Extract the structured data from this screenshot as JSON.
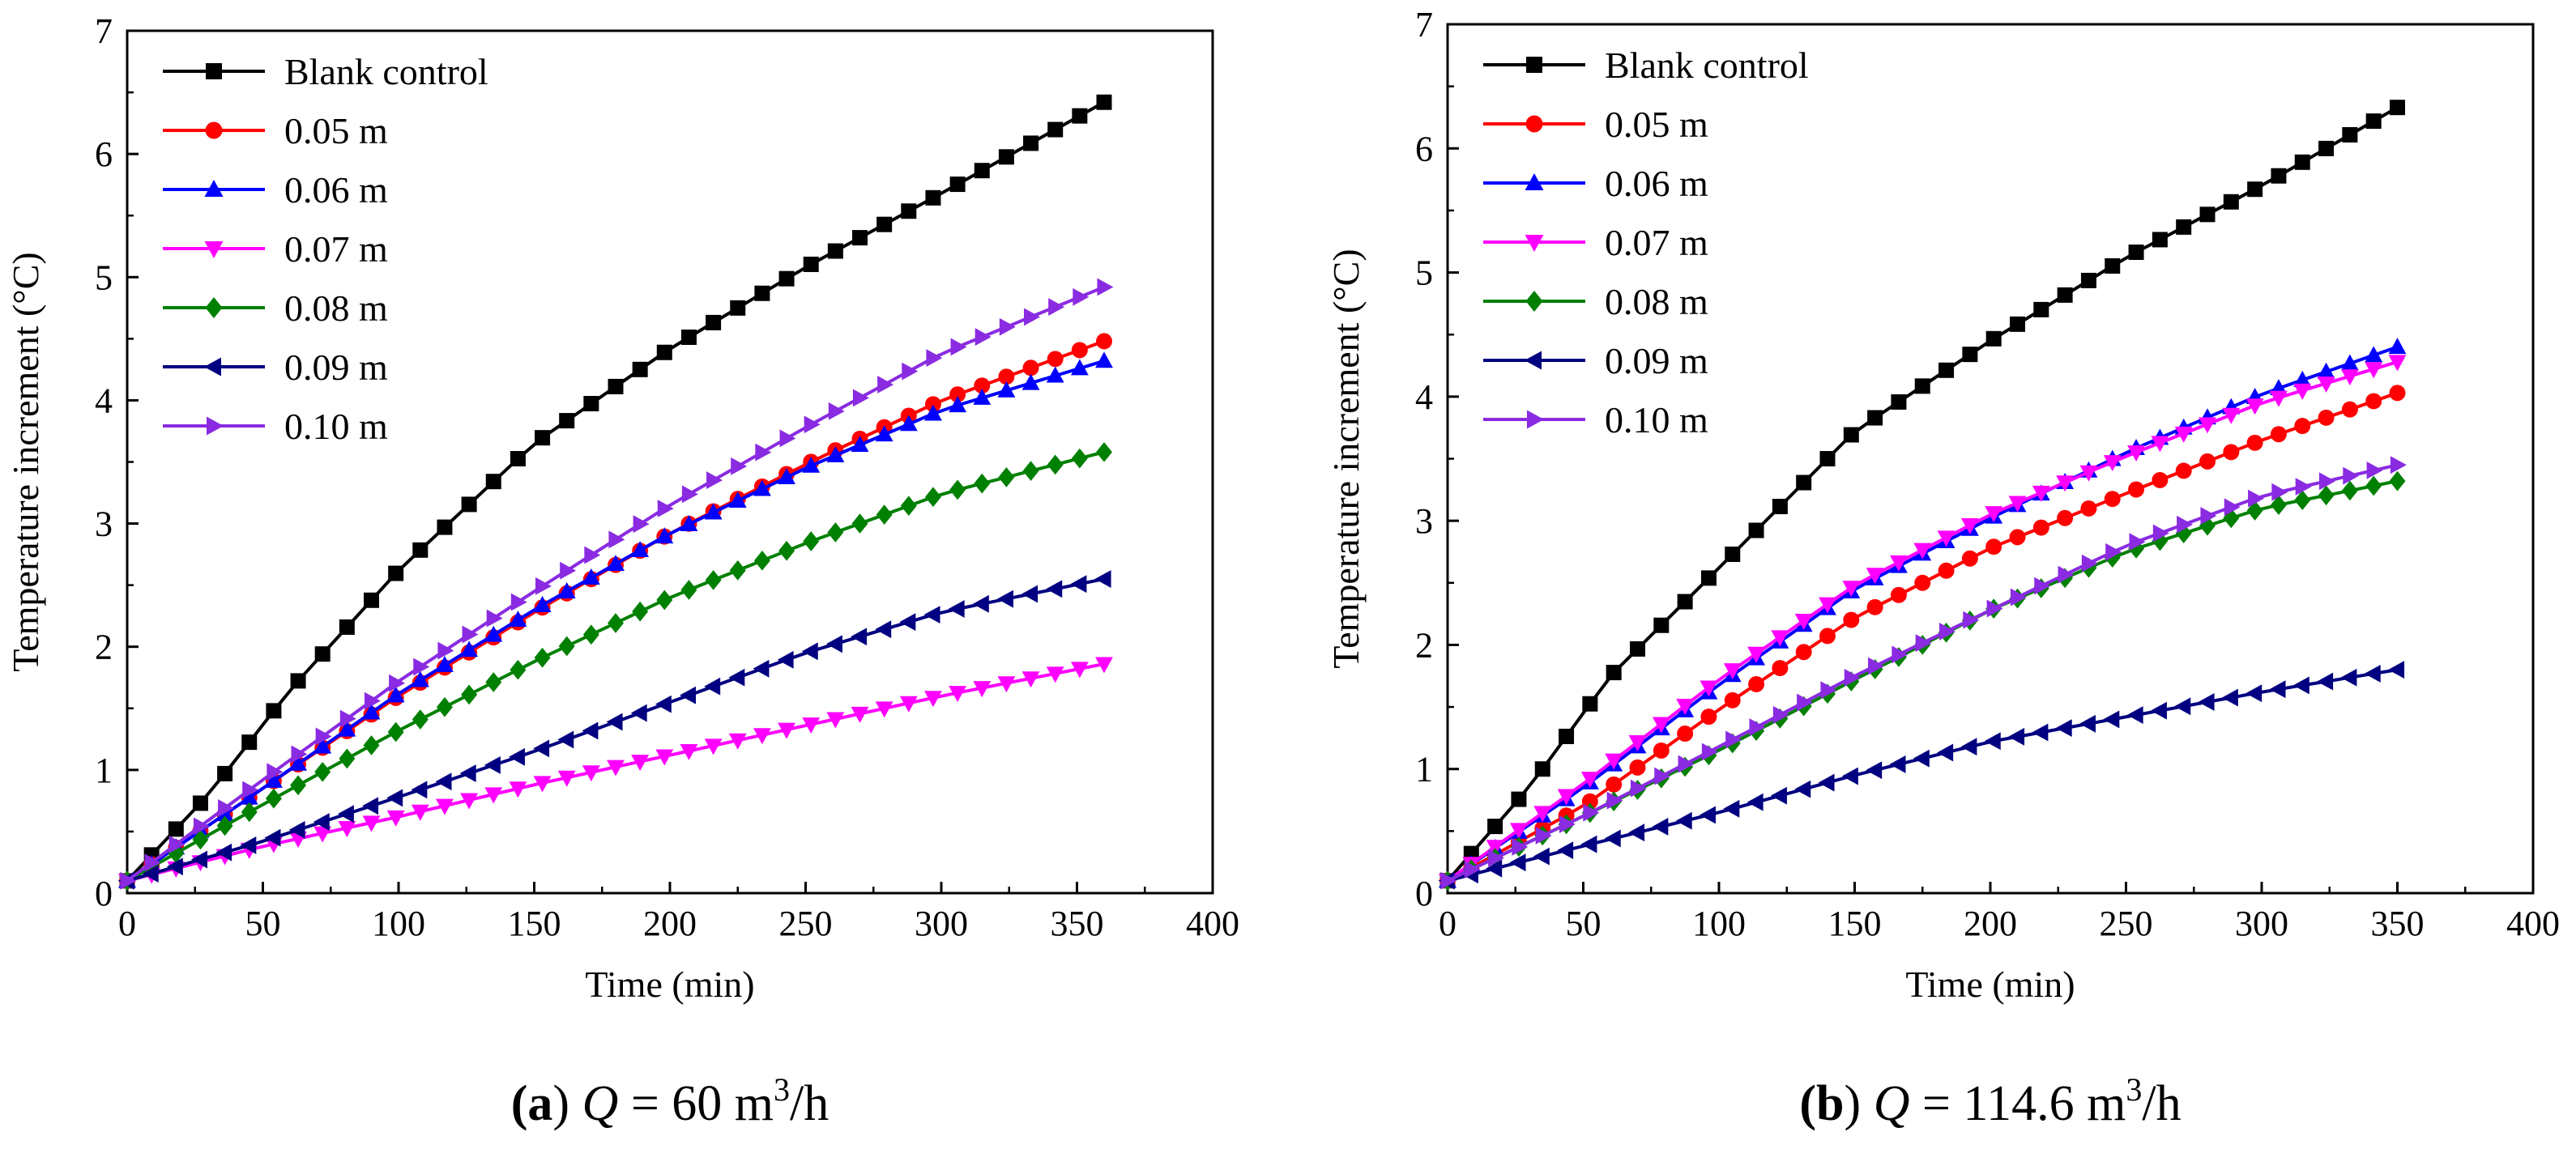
{
  "colors": {
    "Blank control": "#000000",
    "0.05 m": "#ff0000",
    "0.06 m": "#0000ff",
    "0.07 m": "#ff00ff",
    "0.08 m": "#008000",
    "0.09 m": "#000080",
    "0.10 m": "#8a2be2"
  },
  "markers": {
    "Blank control": "square",
    "0.05 m": "circle",
    "0.06 m": "triangle-up",
    "0.07 m": "triangle-down",
    "0.08 m": "diamond",
    "0.09 m": "triangle-left",
    "0.10 m": "triangle-right"
  },
  "chart_data": [
    {
      "type": "line",
      "panel_label": "(a)",
      "caption": {
        "label": "(a)",
        "var": "Q",
        "eq": " = 60 m",
        "sup": "3",
        "unit": "/h"
      },
      "xlabel": "Time (min)",
      "ylabel": "Temperature increment (°C)",
      "xlim": [
        0,
        400
      ],
      "ylim": [
        0,
        7
      ],
      "xticks": [
        0,
        50,
        100,
        150,
        200,
        250,
        300,
        350,
        400
      ],
      "yticks": [
        0,
        1,
        2,
        3,
        4,
        5,
        6,
        7
      ],
      "legend_position": "top-left",
      "x_end": 360,
      "n_points": 41,
      "series": [
        {
          "name": "Blank control",
          "knots": [
            [
              0,
              0.1
            ],
            [
              30,
              0.8
            ],
            [
              60,
              1.65
            ],
            [
              100,
              2.62
            ],
            [
              150,
              3.65
            ],
            [
              200,
              4.42
            ],
            [
              250,
              5.08
            ],
            [
              300,
              5.68
            ],
            [
              360,
              6.42
            ]
          ]
        },
        {
          "name": "0.05 m",
          "knots": [
            [
              0,
              0.1
            ],
            [
              50,
              0.85
            ],
            [
              100,
              1.6
            ],
            [
              150,
              2.28
            ],
            [
              200,
              2.92
            ],
            [
              250,
              3.48
            ],
            [
              300,
              4.0
            ],
            [
              360,
              4.48
            ]
          ]
        },
        {
          "name": "0.06 m",
          "knots": [
            [
              0,
              0.1
            ],
            [
              50,
              0.85
            ],
            [
              100,
              1.62
            ],
            [
              150,
              2.3
            ],
            [
              200,
              2.92
            ],
            [
              250,
              3.45
            ],
            [
              300,
              3.92
            ],
            [
              360,
              4.32
            ]
          ]
        },
        {
          "name": "0.07 m",
          "knots": [
            [
              0,
              0.1
            ],
            [
              50,
              0.38
            ],
            [
              100,
              0.62
            ],
            [
              150,
              0.88
            ],
            [
              200,
              1.12
            ],
            [
              250,
              1.36
            ],
            [
              300,
              1.6
            ],
            [
              360,
              1.86
            ]
          ]
        },
        {
          "name": "0.08 m",
          "knots": [
            [
              0,
              0.1
            ],
            [
              50,
              0.72
            ],
            [
              100,
              1.32
            ],
            [
              150,
              1.88
            ],
            [
              200,
              2.4
            ],
            [
              250,
              2.84
            ],
            [
              300,
              3.24
            ],
            [
              360,
              3.58
            ]
          ]
        },
        {
          "name": "0.09 m",
          "knots": [
            [
              0,
              0.1
            ],
            [
              50,
              0.42
            ],
            [
              100,
              0.78
            ],
            [
              150,
              1.15
            ],
            [
              200,
              1.55
            ],
            [
              250,
              1.95
            ],
            [
              300,
              2.28
            ],
            [
              360,
              2.55
            ]
          ]
        },
        {
          "name": "0.10 m",
          "knots": [
            [
              0,
              0.1
            ],
            [
              50,
              0.92
            ],
            [
              100,
              1.72
            ],
            [
              150,
              2.45
            ],
            [
              200,
              3.15
            ],
            [
              250,
              3.78
            ],
            [
              300,
              4.38
            ],
            [
              360,
              4.92
            ]
          ]
        }
      ]
    },
    {
      "type": "line",
      "panel_label": "(b)",
      "caption": {
        "label": "(b)",
        "var": "Q",
        "eq": " = 114.6 m",
        "sup": "3",
        "unit": "/h"
      },
      "xlabel": "Time (min)",
      "ylabel": "Temperature increment (°C)",
      "xlim": [
        0,
        400
      ],
      "ylim": [
        0,
        7
      ],
      "xticks": [
        0,
        50,
        100,
        150,
        200,
        250,
        300,
        350,
        400
      ],
      "yticks": [
        0,
        1,
        2,
        3,
        4,
        5,
        6,
        7
      ],
      "legend_position": "top-left",
      "x_end": 350,
      "n_points": 41,
      "series": [
        {
          "name": "Blank control",
          "knots": [
            [
              0,
              0.1
            ],
            [
              30,
              0.85
            ],
            [
              60,
              1.75
            ],
            [
              100,
              2.62
            ],
            [
              150,
              3.72
            ],
            [
              200,
              4.45
            ],
            [
              250,
              5.12
            ],
            [
              300,
              5.7
            ],
            [
              350,
              6.33
            ]
          ]
        },
        {
          "name": "0.05 m",
          "knots": [
            [
              0,
              0.1
            ],
            [
              50,
              0.7
            ],
            [
              100,
              1.48
            ],
            [
              150,
              2.22
            ],
            [
              200,
              2.78
            ],
            [
              250,
              3.22
            ],
            [
              300,
              3.65
            ],
            [
              350,
              4.03
            ]
          ]
        },
        {
          "name": "0.06 m",
          "knots": [
            [
              0,
              0.1
            ],
            [
              50,
              0.85
            ],
            [
              100,
              1.68
            ],
            [
              150,
              2.45
            ],
            [
              200,
              3.02
            ],
            [
              250,
              3.55
            ],
            [
              300,
              4.02
            ],
            [
              350,
              4.4
            ]
          ]
        },
        {
          "name": "0.07 m",
          "knots": [
            [
              0,
              0.1
            ],
            [
              50,
              0.88
            ],
            [
              100,
              1.72
            ],
            [
              150,
              2.48
            ],
            [
              200,
              3.05
            ],
            [
              250,
              3.52
            ],
            [
              300,
              3.95
            ],
            [
              350,
              4.28
            ]
          ]
        },
        {
          "name": "0.08 m",
          "knots": [
            [
              0,
              0.1
            ],
            [
              50,
              0.62
            ],
            [
              100,
              1.15
            ],
            [
              150,
              1.72
            ],
            [
              200,
              2.28
            ],
            [
              250,
              2.75
            ],
            [
              300,
              3.1
            ],
            [
              350,
              3.32
            ]
          ]
        },
        {
          "name": "0.09 m",
          "knots": [
            [
              0,
              0.1
            ],
            [
              50,
              0.38
            ],
            [
              100,
              0.65
            ],
            [
              150,
              0.95
            ],
            [
              200,
              1.22
            ],
            [
              250,
              1.42
            ],
            [
              300,
              1.62
            ],
            [
              350,
              1.8
            ]
          ]
        },
        {
          "name": "0.10 m",
          "knots": [
            [
              0,
              0.1
            ],
            [
              50,
              0.62
            ],
            [
              100,
              1.18
            ],
            [
              150,
              1.75
            ],
            [
              200,
              2.28
            ],
            [
              250,
              2.8
            ],
            [
              300,
              3.2
            ],
            [
              350,
              3.45
            ]
          ]
        }
      ]
    }
  ]
}
